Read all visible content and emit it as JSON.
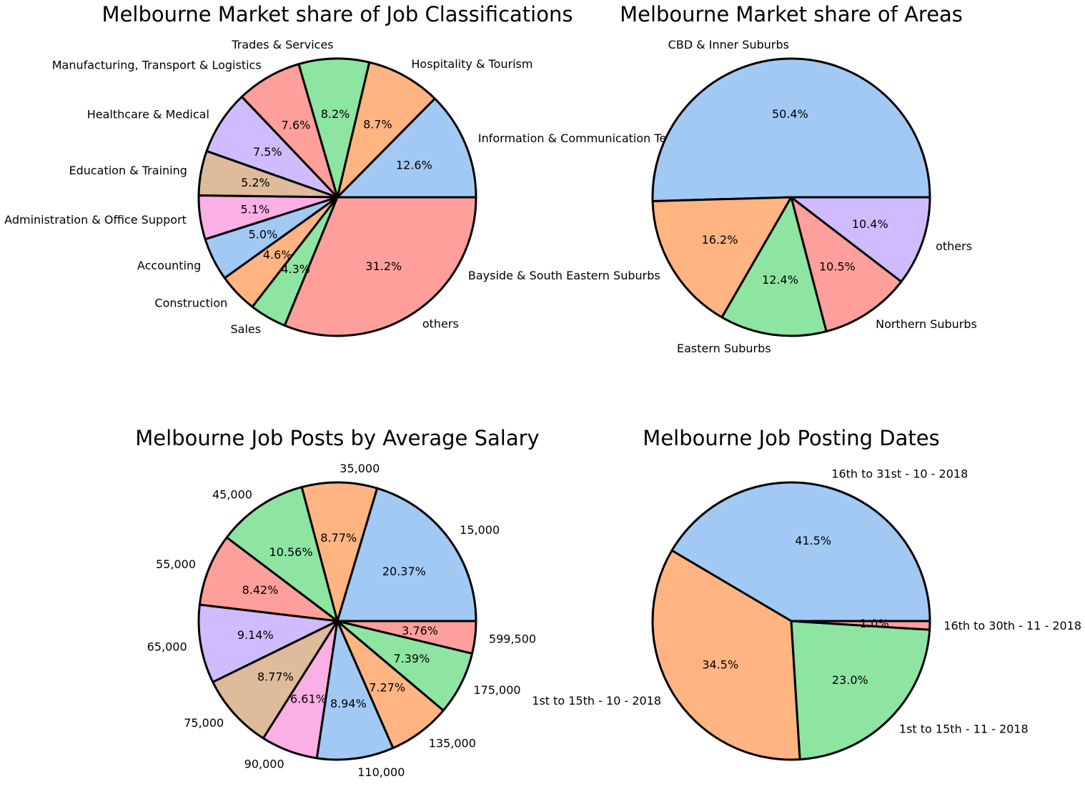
{
  "chart_data": [
    {
      "type": "pie",
      "title": "Melbourne Market share of Job Classifications",
      "labels": [
        "Information & Communication Technology",
        "Hospitality & Tourism",
        "Trades & Services",
        "Manufacturing, Transport & Logistics",
        "Healthcare & Medical",
        "Education & Training",
        "Administration & Office Support",
        "Accounting",
        "Construction",
        "Sales",
        "others"
      ],
      "values": [
        12.6,
        8.7,
        8.2,
        7.6,
        7.5,
        5.2,
        5.1,
        5.0,
        4.6,
        4.3,
        31.2
      ],
      "value_labels": [
        "12.6%",
        "8.7%",
        "8.2%",
        "7.6%",
        "7.5%",
        "5.2%",
        "5.1%",
        "5.0%",
        "4.6%",
        "4.3%",
        "31.2%"
      ],
      "colors": [
        "#a1c9f4",
        "#ffb482",
        "#8de5a1",
        "#ff9f9b",
        "#d0bbff",
        "#debb9b",
        "#fab0e4",
        "#a1c9f4",
        "#ffb482",
        "#8de5a1",
        "#ff9f9b"
      ],
      "start_angle": 0,
      "direction": "counterclockwise"
    },
    {
      "type": "pie",
      "title": "Melbourne Market share of Areas",
      "labels": [
        "CBD & Inner Suburbs",
        "Bayside & South Eastern Suburbs",
        "Eastern Suburbs",
        "Northern Suburbs",
        "others"
      ],
      "values": [
        50.4,
        16.2,
        12.4,
        10.5,
        10.4
      ],
      "value_labels": [
        "50.4%",
        "16.2%",
        "12.4%",
        "10.5%",
        "10.4%"
      ],
      "colors": [
        "#a1c9f4",
        "#ffb482",
        "#8de5a1",
        "#ff9f9b",
        "#d0bbff"
      ],
      "start_angle": 0,
      "direction": "counterclockwise"
    },
    {
      "type": "pie",
      "title": "Melbourne Job Posts by Average Salary",
      "labels": [
        "15,000",
        "35,000",
        "45,000",
        "55,000",
        "65,000",
        "75,000",
        "90,000",
        "110,000",
        "135,000",
        "175,000",
        "599,500"
      ],
      "values": [
        20.37,
        8.77,
        10.56,
        8.42,
        9.14,
        8.77,
        6.61,
        8.94,
        7.27,
        7.39,
        3.76
      ],
      "value_labels": [
        "20.37%",
        "8.77%",
        "10.56%",
        "8.42%",
        "9.14%",
        "8.77%",
        "6.61%",
        "8.94%",
        "7.27%",
        "7.39%",
        "3.76%"
      ],
      "colors": [
        "#a1c9f4",
        "#ffb482",
        "#8de5a1",
        "#ff9f9b",
        "#d0bbff",
        "#debb9b",
        "#fab0e4",
        "#a1c9f4",
        "#ffb482",
        "#8de5a1",
        "#ff9f9b"
      ],
      "start_angle": 0,
      "direction": "counterclockwise"
    },
    {
      "type": "pie",
      "title": "Melbourne Job Posting Dates",
      "labels": [
        "16th to 31st - 10 - 2018",
        "1st to 15th - 10 - 2018",
        "1st to 15th - 11 - 2018",
        "16th to 30th - 11 - 2018"
      ],
      "values": [
        41.5,
        34.5,
        23.0,
        1.0
      ],
      "value_labels": [
        "41.5%",
        "34.5%",
        "23.0%",
        "1.0%"
      ],
      "colors": [
        "#a1c9f4",
        "#ffb482",
        "#8de5a1",
        "#ff9f9b"
      ],
      "start_angle": 0,
      "direction": "counterclockwise"
    }
  ]
}
